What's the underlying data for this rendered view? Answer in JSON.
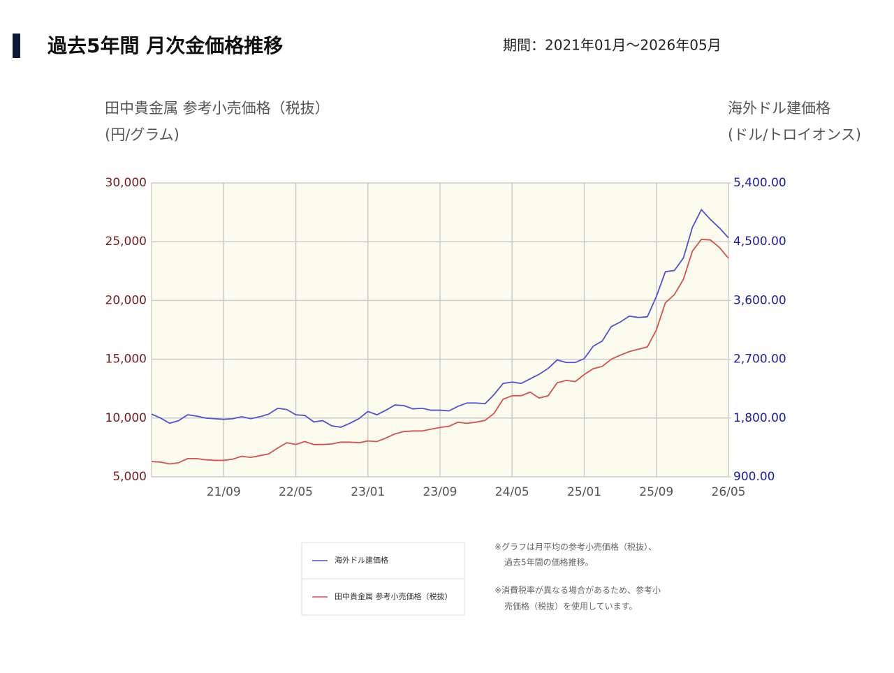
{
  "header": {
    "title": "過去5年間 月次金価格推移",
    "period": "期間：2021年01月〜2026年05月"
  },
  "chart_data": {
    "type": "line",
    "y_label": [
      "田中貴金属 参考小売価格（税抜）",
      "(円/グラム)"
    ],
    "y2_label": [
      "海外ドル建価格",
      "(ドル/トロイオンス)"
    ],
    "categories": [
      null,
      null,
      null,
      null,
      null,
      null,
      null,
      null,
      "21/09",
      null,
      null,
      null,
      null,
      null,
      null,
      null,
      "22/05",
      null,
      null,
      null,
      null,
      null,
      null,
      null,
      "23/01",
      null,
      null,
      null,
      null,
      null,
      null,
      null,
      "23/09",
      null,
      null,
      null,
      null,
      null,
      null,
      null,
      "24/05",
      null,
      null,
      null,
      null,
      null,
      null,
      null,
      "25/01",
      null,
      null,
      null,
      null,
      null,
      null,
      null,
      "25/09",
      null,
      null,
      null,
      null,
      null,
      null,
      null,
      "26/05"
    ],
    "series": [
      {
        "name": "海外ドル建価格",
        "color": "#5050d8",
        "axis": "y2",
        "values": [
          1860,
          1800,
          1720,
          1760,
          1850,
          1830,
          1800,
          1790,
          1780,
          1790,
          1820,
          1790,
          1820,
          1860,
          1950,
          1930,
          1850,
          1840,
          1740,
          1760,
          1680,
          1660,
          1720,
          1790,
          1900,
          1850,
          1920,
          2000,
          1990,
          1940,
          1950,
          1920,
          1920,
          1910,
          1980,
          2030,
          2030,
          2020,
          2160,
          2330,
          2350,
          2330,
          2400,
          2470,
          2560,
          2690,
          2650,
          2650,
          2710,
          2900,
          2980,
          3200,
          3270,
          3360,
          3340,
          3350,
          3660,
          4040,
          4060,
          4250,
          4720,
          4990,
          4840,
          4710,
          4560
        ]
      },
      {
        "name": "田中貴金属 参考小売価格（税抜）",
        "color": "#d9504a",
        "axis": "y",
        "values": [
          6300,
          6250,
          6100,
          6200,
          6550,
          6550,
          6450,
          6400,
          6400,
          6500,
          6750,
          6650,
          6800,
          6950,
          7450,
          7900,
          7750,
          8000,
          7750,
          7750,
          7800,
          7950,
          7950,
          7900,
          8050,
          8000,
          8300,
          8650,
          8850,
          8900,
          8900,
          9050,
          9200,
          9300,
          9650,
          9550,
          9650,
          9800,
          10400,
          11600,
          11900,
          11900,
          12200,
          11700,
          11900,
          13000,
          13200,
          13100,
          13700,
          14200,
          14400,
          15000,
          15350,
          15650,
          15850,
          16050,
          17500,
          19800,
          20500,
          21800,
          24200,
          25200,
          25150,
          24500,
          23600
        ]
      }
    ],
    "ylim": [
      5000,
      30000
    ],
    "yticks": [
      {
        "value": 5000,
        "label": "5,000"
      },
      {
        "value": 10000,
        "label": "10,000"
      },
      {
        "value": 15000,
        "label": "15,000"
      },
      {
        "value": 20000,
        "label": "20,000"
      },
      {
        "value": 25000,
        "label": "25,000"
      },
      {
        "value": 30000,
        "label": "30,000"
      }
    ],
    "y2lim": [
      900,
      5400
    ],
    "y2ticks": [
      {
        "value": 900,
        "label": "900.00"
      },
      {
        "value": 1800,
        "label": "1,800.00"
      },
      {
        "value": 2700,
        "label": "2,700.00"
      },
      {
        "value": 3600,
        "label": "3,600.00"
      },
      {
        "value": 4500,
        "label": "4,500.00"
      },
      {
        "value": 5400,
        "label": "5,400.00"
      }
    ],
    "grid": true,
    "notes": [
      "※グラフは月平均の参考小売価格（税抜）、",
      "過去5年間の価格推移。",
      "※消費税率が異なる場合があるため、参考小",
      "売価格（税抜）を使用しています。"
    ]
  }
}
